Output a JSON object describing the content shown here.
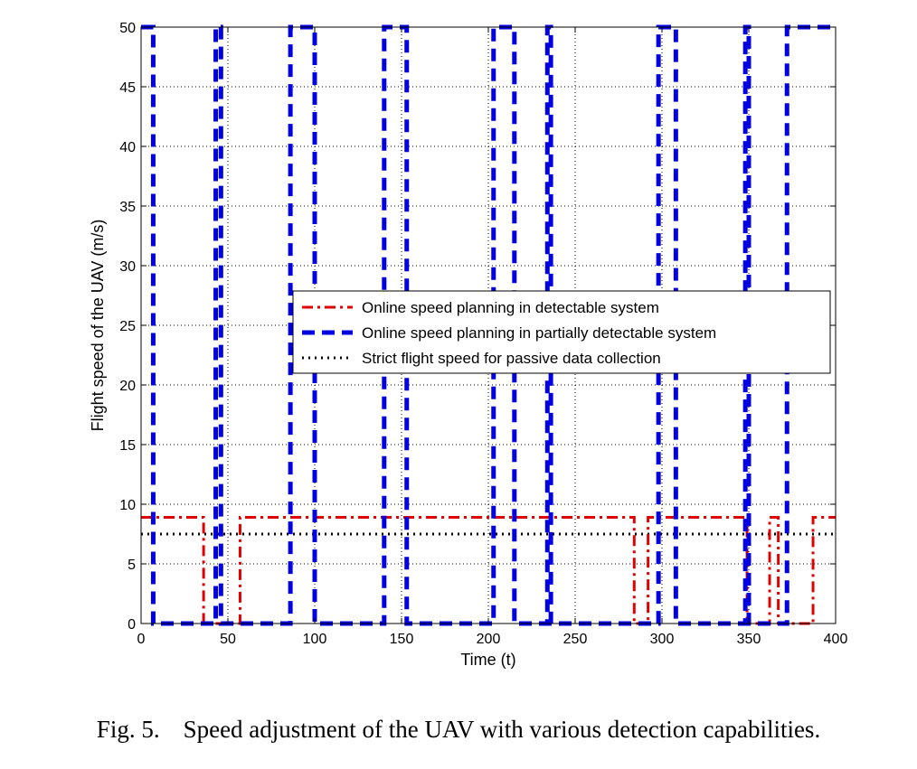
{
  "chart_data": {
    "type": "line",
    "xlabel": "Time (t)",
    "ylabel": "Flight speed of the UAV (m/s)",
    "xlim": [
      0,
      400
    ],
    "ylim": [
      0,
      50
    ],
    "xticks": [
      "0",
      "50",
      "100",
      "150",
      "200",
      "250",
      "300",
      "350",
      "400"
    ],
    "yticks": [
      "0",
      "5",
      "10",
      "15",
      "20",
      "25",
      "30",
      "35",
      "40",
      "45",
      "50"
    ],
    "grid": true,
    "legend_position": "center-right",
    "series": [
      {
        "name": "Online speed planning in detectable system",
        "color": "#e00000",
        "style": "dashdot",
        "step_x": [
          0,
          36,
          46,
          57,
          70,
          284,
          288,
          292,
          349,
          362,
          367,
          372,
          387,
          400
        ],
        "step_y": [
          8.9,
          0,
          0,
          8.9,
          8.9,
          0,
          0,
          8.9,
          0,
          8.9,
          0,
          0,
          8.9,
          8.9
        ]
      },
      {
        "name": "Online speed planning in partially detectable system",
        "color": "#0000e0",
        "style": "dashed",
        "step_x": [
          0,
          7,
          43,
          46,
          86,
          100,
          140,
          153,
          203,
          215,
          234,
          236,
          298,
          308,
          348,
          350,
          372,
          400
        ],
        "step_y": [
          50,
          0,
          50,
          0,
          50,
          0,
          50,
          0,
          50,
          0,
          50,
          0,
          50,
          0,
          50,
          0,
          50,
          50
        ]
      },
      {
        "name": "Strict flight speed for passive data collection",
        "color": "#000000",
        "style": "dotted",
        "step_x": [
          0,
          400
        ],
        "step_y": [
          7.5,
          7.5
        ]
      }
    ]
  },
  "caption": {
    "label": "Fig. 5.",
    "text": "Speed adjustment of the UAV with various detection capabilities."
  }
}
